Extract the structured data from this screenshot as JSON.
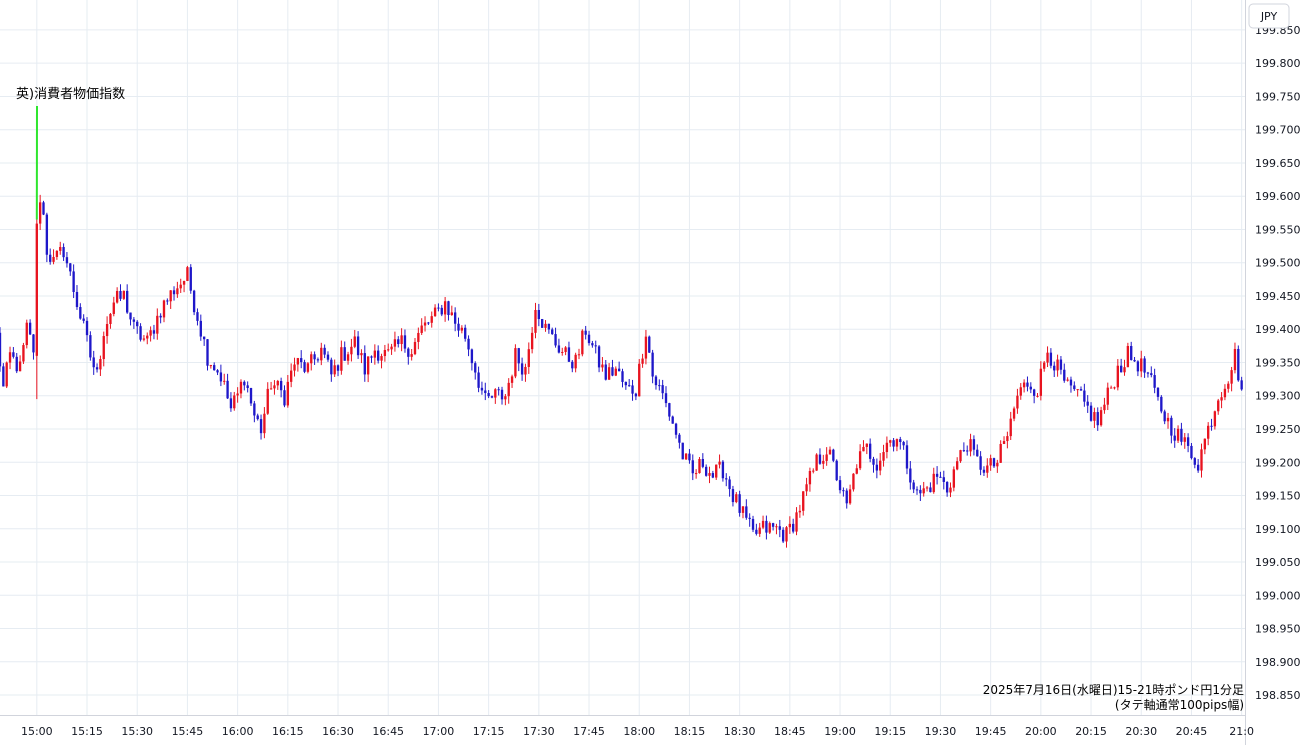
{
  "chart_data": {
    "type": "candlestick",
    "currency_label": "JPY",
    "caption_line1": "2025年7月16日(水曜日)15-21時ポンド円1分足",
    "caption_line2": "(タテ軸通常100pips幅)",
    "annotation": {
      "text": "英)消費者物価指数",
      "time": "15:00",
      "price": 199.565
    },
    "ylim": [
      198.82,
      199.895
    ],
    "y_ticks": [
      199.85,
      199.8,
      199.75,
      199.7,
      199.65,
      199.6,
      199.55,
      199.5,
      199.45,
      199.4,
      199.35,
      199.3,
      199.25,
      199.2,
      199.15,
      199.1,
      199.05,
      199.0,
      198.95,
      198.9,
      198.85
    ],
    "y_tick_labels": [
      "199.850",
      "199.800",
      "199.750",
      "199.700",
      "199.650",
      "199.600",
      "199.550",
      "199.500",
      "199.450",
      "199.400",
      "199.350",
      "199.300",
      "199.250",
      "199.200",
      "199.150",
      "199.100",
      "199.050",
      "199.000",
      "198.950",
      "198.900",
      "198.850"
    ],
    "x_ticks": [
      "15:00",
      "15:15",
      "15:30",
      "15:45",
      "16:00",
      "16:15",
      "16:30",
      "16:45",
      "17:00",
      "17:15",
      "17:30",
      "17:45",
      "18:00",
      "18:15",
      "18:30",
      "18:45",
      "19:00",
      "19:15",
      "19:30",
      "19:45",
      "20:00",
      "20:15",
      "20:30",
      "20:45",
      "21:0"
    ],
    "x_start_time": "14:49",
    "x_end_time": "21:01",
    "colors": {
      "up": "#e8131f",
      "down": "#1e17c9",
      "annotation_line": "#2ee62e",
      "grid": "#e6ecf2"
    },
    "price_path": [
      [
        "14:48",
        199.39
      ],
      [
        "14:50",
        199.31
      ],
      [
        "14:52",
        199.36
      ],
      [
        "14:55",
        199.34
      ],
      [
        "14:57",
        199.4
      ],
      [
        "14:59",
        199.37
      ],
      [
        "15:00",
        199.55
      ],
      [
        "15:01",
        199.6
      ],
      [
        "15:02",
        199.57
      ],
      [
        "15:03",
        199.52
      ],
      [
        "15:05",
        199.5
      ],
      [
        "15:08",
        199.52
      ],
      [
        "15:10",
        199.48
      ],
      [
        "15:13",
        199.42
      ],
      [
        "15:16",
        199.36
      ],
      [
        "15:18",
        199.33
      ],
      [
        "15:20",
        199.4
      ],
      [
        "15:23",
        199.44
      ],
      [
        "15:26",
        199.45
      ],
      [
        "15:29",
        199.4
      ],
      [
        "15:33",
        199.38
      ],
      [
        "15:37",
        199.43
      ],
      [
        "15:41",
        199.46
      ],
      [
        "15:45",
        199.48
      ],
      [
        "15:48",
        199.42
      ],
      [
        "15:51",
        199.36
      ],
      [
        "15:55",
        199.33
      ],
      [
        "15:58",
        199.28
      ],
      [
        "16:00",
        199.3
      ],
      [
        "16:02",
        199.33
      ],
      [
        "16:05",
        199.27
      ],
      [
        "16:07",
        199.25
      ],
      [
        "16:10",
        199.32
      ],
      [
        "16:14",
        199.3
      ],
      [
        "16:17",
        199.35
      ],
      [
        "16:21",
        199.34
      ],
      [
        "16:25",
        199.37
      ],
      [
        "16:28",
        199.33
      ],
      [
        "16:31",
        199.36
      ],
      [
        "16:35",
        199.38
      ],
      [
        "16:38",
        199.34
      ],
      [
        "16:41",
        199.37
      ],
      [
        "16:45",
        199.36
      ],
      [
        "16:49",
        199.38
      ],
      [
        "16:52",
        199.37
      ],
      [
        "16:55",
        199.4
      ],
      [
        "16:59",
        199.42
      ],
      [
        "17:02",
        199.44
      ],
      [
        "17:05",
        199.41
      ],
      [
        "17:08",
        199.39
      ],
      [
        "17:11",
        199.34
      ],
      [
        "17:14",
        199.29
      ],
      [
        "17:17",
        199.3
      ],
      [
        "17:20",
        199.3
      ],
      [
        "17:23",
        199.36
      ],
      [
        "17:26",
        199.34
      ],
      [
        "17:29",
        199.44
      ],
      [
        "17:32",
        199.4
      ],
      [
        "17:35",
        199.38
      ],
      [
        "17:38",
        199.36
      ],
      [
        "17:41",
        199.35
      ],
      [
        "17:44",
        199.4
      ],
      [
        "17:47",
        199.36
      ],
      [
        "17:50",
        199.33
      ],
      [
        "17:53",
        199.34
      ],
      [
        "17:56",
        199.31
      ],
      [
        "17:59",
        199.31
      ],
      [
        "18:02",
        199.4
      ],
      [
        "18:04",
        199.33
      ],
      [
        "18:07",
        199.3
      ],
      [
        "18:10",
        199.26
      ],
      [
        "18:13",
        199.21
      ],
      [
        "18:16",
        199.18
      ],
      [
        "18:19",
        199.2
      ],
      [
        "18:22",
        199.18
      ],
      [
        "18:25",
        199.19
      ],
      [
        "18:28",
        199.15
      ],
      [
        "18:31",
        199.12
      ],
      [
        "18:34",
        199.09
      ],
      [
        "18:37",
        199.1
      ],
      [
        "18:41",
        199.1
      ],
      [
        "18:44",
        199.09
      ],
      [
        "18:47",
        199.12
      ],
      [
        "18:50",
        199.16
      ],
      [
        "18:53",
        199.2
      ],
      [
        "18:56",
        199.22
      ],
      [
        "18:59",
        199.18
      ],
      [
        "19:02",
        199.13
      ],
      [
        "19:05",
        199.2
      ],
      [
        "19:08",
        199.22
      ],
      [
        "19:11",
        199.2
      ],
      [
        "19:14",
        199.23
      ],
      [
        "19:17",
        199.24
      ],
      [
        "19:20",
        199.2
      ],
      [
        "19:23",
        199.15
      ],
      [
        "19:26",
        199.16
      ],
      [
        "19:29",
        199.18
      ],
      [
        "19:32",
        199.16
      ],
      [
        "19:35",
        199.2
      ],
      [
        "19:38",
        199.23
      ],
      [
        "19:41",
        199.2
      ],
      [
        "19:44",
        199.19
      ],
      [
        "19:47",
        199.2
      ],
      [
        "19:50",
        199.24
      ],
      [
        "19:53",
        199.3
      ],
      [
        "19:56",
        199.32
      ],
      [
        "19:59",
        199.31
      ],
      [
        "20:02",
        199.37
      ],
      [
        "20:05",
        199.34
      ],
      [
        "20:08",
        199.31
      ],
      [
        "20:11",
        199.3
      ],
      [
        "20:14",
        199.28
      ],
      [
        "20:17",
        199.26
      ],
      [
        "20:20",
        199.3
      ],
      [
        "20:23",
        199.34
      ],
      [
        "20:26",
        199.36
      ],
      [
        "20:29",
        199.35
      ],
      [
        "20:32",
        199.33
      ],
      [
        "20:35",
        199.29
      ],
      [
        "20:38",
        199.26
      ],
      [
        "20:41",
        199.24
      ],
      [
        "20:44",
        199.22
      ],
      [
        "20:47",
        199.2
      ],
      [
        "20:50",
        199.25
      ],
      [
        "20:53",
        199.3
      ],
      [
        "20:56",
        199.33
      ],
      [
        "20:58",
        199.36
      ],
      [
        "21:00",
        199.31
      ]
    ]
  }
}
